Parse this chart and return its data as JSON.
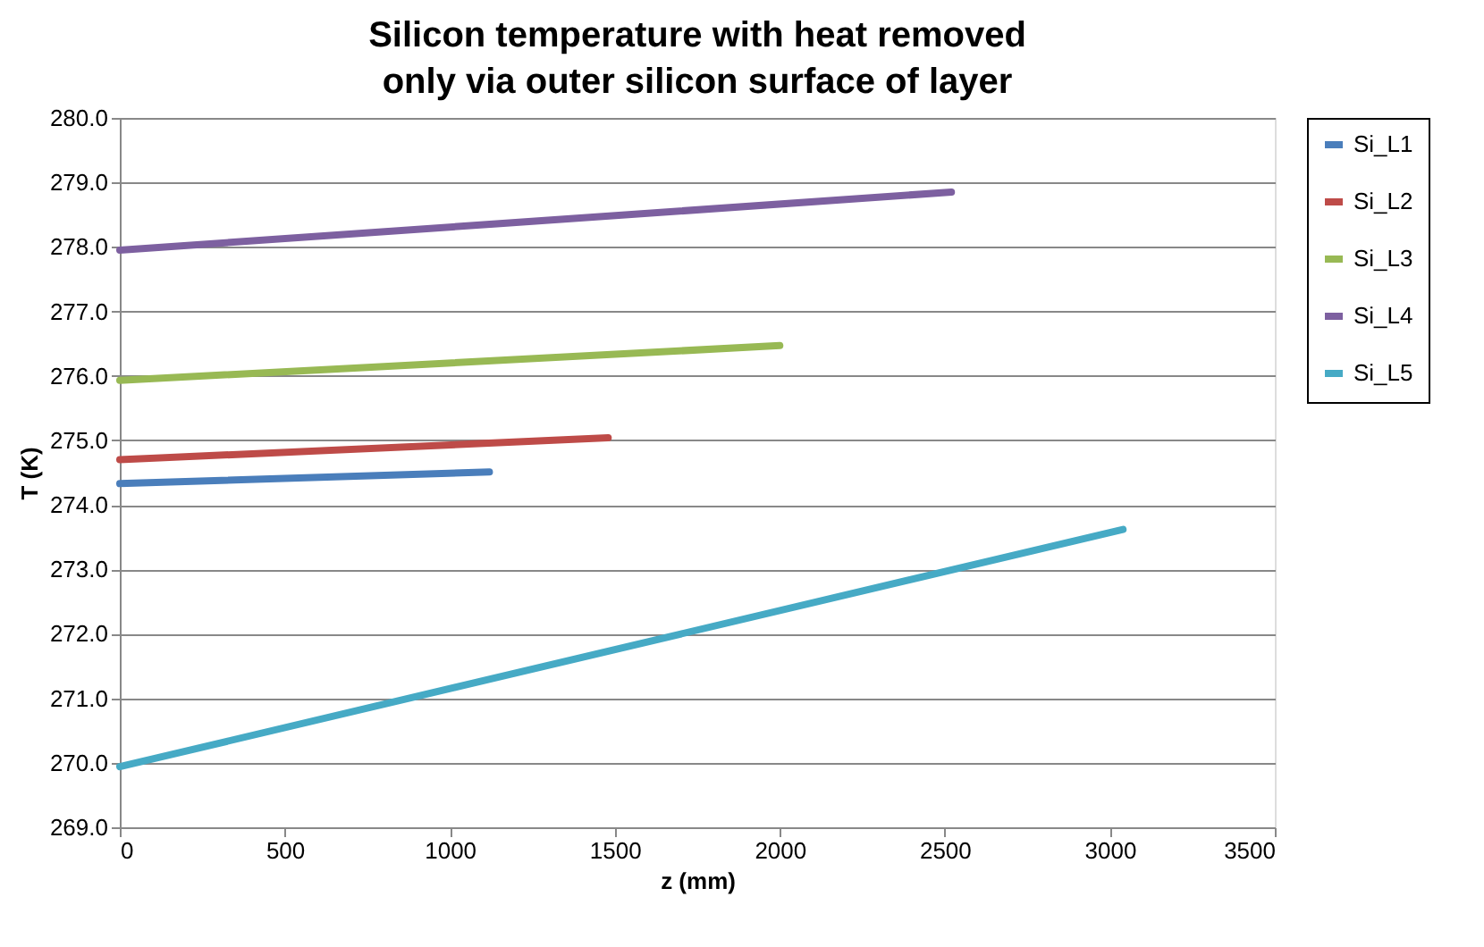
{
  "chart_data": {
    "type": "line",
    "title": "Silicon temperature with heat removed only via outer silicon surface of layer",
    "xlabel": "z (mm)",
    "ylabel": "T (K)",
    "xlim": [
      0,
      3500
    ],
    "xticks": [
      0,
      500,
      1000,
      1500,
      2000,
      2500,
      3000,
      3500
    ],
    "ylim": [
      269,
      280
    ],
    "yticks": [
      {
        "value": 269,
        "label": "269.0"
      },
      {
        "value": 270,
        "label": "270.0"
      },
      {
        "value": 271,
        "label": "271.0"
      },
      {
        "value": 272,
        "label": "272.0"
      },
      {
        "value": 273,
        "label": "273.0"
      },
      {
        "value": 274,
        "label": "274.0"
      },
      {
        "value": 275,
        "label": "275.0"
      },
      {
        "value": 276,
        "label": "276.0"
      },
      {
        "value": 277,
        "label": "277.0"
      },
      {
        "value": 278,
        "label": "278.0"
      },
      {
        "value": 279,
        "label": "279.0"
      },
      {
        "value": 280,
        "label": "280.0"
      }
    ],
    "grid": "y",
    "legend": "right",
    "line_style": "solid",
    "marker": "none",
    "series": [
      {
        "name": "Si_L1",
        "color": "#4a7ebb",
        "x": [
          0,
          1120
        ],
        "values": [
          274.33,
          274.51
        ]
      },
      {
        "name": "Si_L2",
        "color": "#be4b48",
        "x": [
          0,
          1480
        ],
        "values": [
          274.7,
          275.04
        ]
      },
      {
        "name": "Si_L3",
        "color": "#98b954",
        "x": [
          0,
          2000
        ],
        "values": [
          275.93,
          276.47
        ]
      },
      {
        "name": "Si_L4",
        "color": "#7d60a0",
        "x": [
          0,
          2520
        ],
        "values": [
          277.95,
          278.85
        ]
      },
      {
        "name": "Si_L5",
        "color": "#46aac5",
        "x": [
          0,
          3040
        ],
        "values": [
          269.94,
          273.62
        ]
      }
    ]
  }
}
